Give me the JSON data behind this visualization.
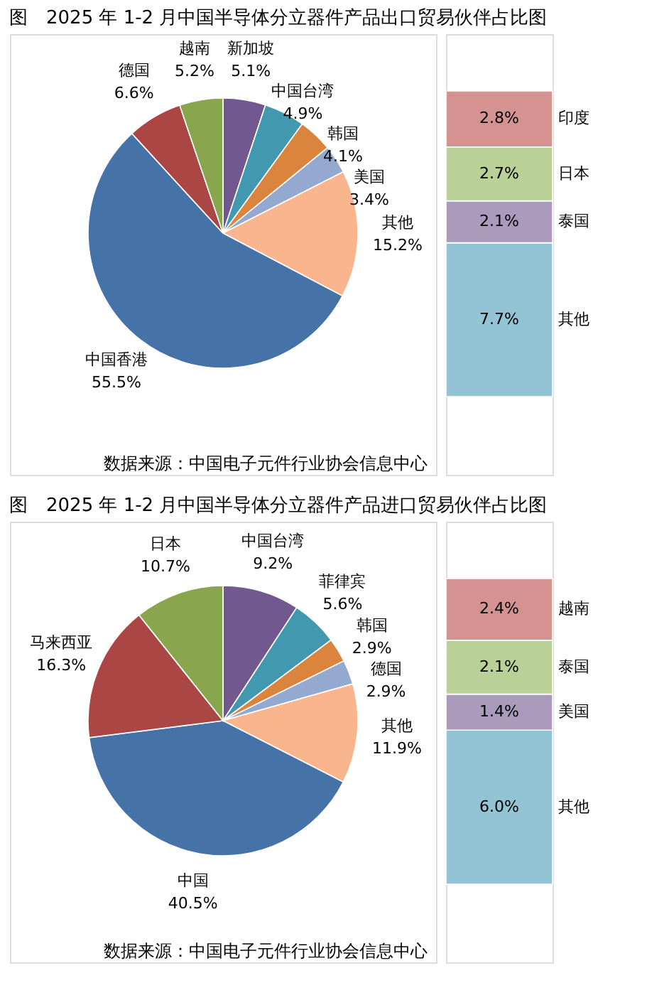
{
  "chart_data": [
    {
      "type": "pie",
      "title": "图　2025 年 1-2 月中国半导体分立器件产品出口贸易伙伴占比图",
      "categories": [
        "新加坡",
        "中国台湾",
        "韩国",
        "美国",
        "其他",
        "中国香港",
        "德国",
        "越南"
      ],
      "values": [
        5.1,
        4.9,
        4.1,
        3.4,
        15.2,
        55.5,
        6.6,
        5.2
      ],
      "value_labels": [
        "5.1%",
        "4.9%",
        "4.1%",
        "3.4%",
        "15.2%",
        "55.5%",
        "6.6%",
        "5.2%"
      ],
      "colors": [
        "#71588f",
        "#4198af",
        "#db843d",
        "#93a9cf",
        "#f9b58e",
        "#4572a7",
        "#aa4643",
        "#89a54e"
      ],
      "annotations": [
        "数据来源：中国电子元件行业协会信息中心"
      ]
    },
    {
      "type": "bar",
      "stacked": true,
      "data_labels": true,
      "categories": [
        null
      ],
      "series": [
        {
          "name": "其他",
          "color": "#93c4d6",
          "values": [
            7.7
          ],
          "value_labels": [
            "7.7%"
          ]
        },
        {
          "name": "泰国",
          "color": "#aa9bbd",
          "values": [
            2.1
          ],
          "value_labels": [
            "2.1%"
          ]
        },
        {
          "name": "日本",
          "color": "#b9d096",
          "values": [
            2.7
          ],
          "value_labels": [
            "2.7%"
          ]
        },
        {
          "name": "印度",
          "color": "#d49391",
          "values": [
            2.8
          ],
          "value_labels": [
            "2.8%"
          ]
        }
      ]
    },
    {
      "type": "pie",
      "title": "图　2025 年 1-2 月中国半导体分立器件产品进口贸易伙伴占比图",
      "categories": [
        "中国台湾",
        "菲律宾",
        "韩国",
        "德国",
        "其他",
        "中国",
        "马来西亚",
        "日本"
      ],
      "values": [
        9.2,
        5.6,
        2.9,
        2.9,
        11.9,
        40.5,
        16.3,
        10.7
      ],
      "value_labels": [
        "9.2%",
        "5.6%",
        "2.9%",
        "2.9%",
        "11.9%",
        "40.5%",
        "16.3%",
        "10.7%"
      ],
      "colors": [
        "#71588f",
        "#4198af",
        "#db843d",
        "#93a9cf",
        "#f9b58e",
        "#4572a7",
        "#aa4643",
        "#89a54e"
      ],
      "annotations": [
        "数据来源：中国电子元件行业协会信息中心"
      ]
    },
    {
      "type": "bar",
      "stacked": true,
      "data_labels": true,
      "categories": [
        null
      ],
      "series": [
        {
          "name": "其他",
          "color": "#93c4d6",
          "values": [
            6.0
          ],
          "value_labels": [
            "6.0%"
          ]
        },
        {
          "name": "美国",
          "color": "#aa9bbd",
          "values": [
            1.4
          ],
          "value_labels": [
            "1.4%"
          ]
        },
        {
          "name": "泰国",
          "color": "#b9d096",
          "values": [
            2.1
          ],
          "value_labels": [
            "2.1%"
          ]
        },
        {
          "name": "越南",
          "color": "#d49391",
          "values": [
            2.4
          ],
          "value_labels": [
            "2.4%"
          ]
        }
      ]
    }
  ]
}
